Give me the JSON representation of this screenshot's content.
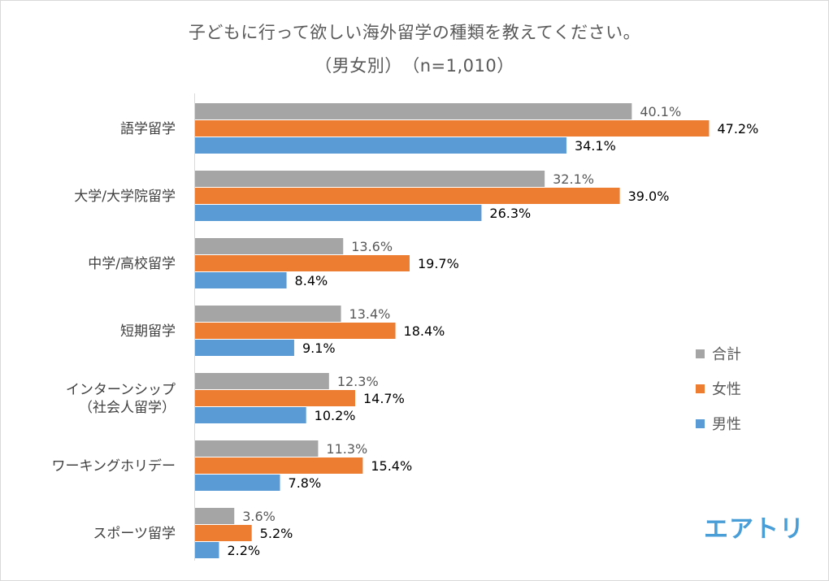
{
  "title": {
    "line1": "子どもに行って欲しい海外留学の種類を教えてください。",
    "line2": "（男女別）　（n=1,010）"
  },
  "logo_text": "エアトリ",
  "chart_data": {
    "type": "bar",
    "orientation": "horizontal",
    "title": "子どもに行って欲しい海外留学の種類を教えてください。（男女別）（n=1,010）",
    "value_unit": "%",
    "categories": [
      [
        "語学留学"
      ],
      [
        "大学/大学院留学"
      ],
      [
        "中学/高校留学"
      ],
      [
        "短期留学"
      ],
      [
        "インターンシップ",
        "（社会人留学）"
      ],
      [
        "ワーキングホリデー"
      ],
      [
        "スポーツ留学"
      ]
    ],
    "series": [
      {
        "name": "合計",
        "color": "#a5a5a5",
        "label_color": "#595959",
        "values": [
          40.1,
          32.1,
          13.6,
          13.4,
          12.3,
          11.3,
          3.6
        ]
      },
      {
        "name": "女性",
        "color": "#ed7d31",
        "label_color": "#000000",
        "values": [
          47.2,
          39.0,
          19.7,
          18.4,
          14.7,
          15.4,
          5.2
        ]
      },
      {
        "name": "男性",
        "color": "#5b9bd5",
        "label_color": "#000000",
        "values": [
          34.1,
          26.3,
          8.4,
          9.1,
          10.2,
          7.8,
          2.2
        ]
      }
    ],
    "legend": {
      "position": "right"
    },
    "grid": false
  }
}
